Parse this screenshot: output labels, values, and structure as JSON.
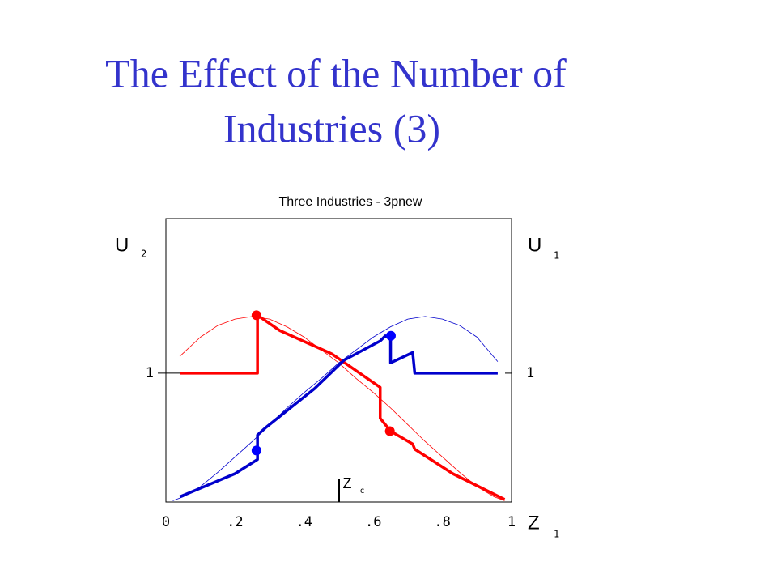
{
  "chart_data": {
    "type": "line",
    "title_lines": [
      "The Effect of the Number of",
      "Industries (3)"
    ],
    "subtitle": "Three  Industries  -  3pnew",
    "y_label_left": {
      "text": "U",
      "sub": "2"
    },
    "y_label_right": {
      "text": "U",
      "sub": "1"
    },
    "x_label": {
      "text": "Z",
      "sub": "1"
    },
    "zc_label": {
      "text": "Z",
      "sub": "c"
    },
    "zc": 0.5,
    "xlim": [
      0,
      1
    ],
    "ylim": [
      0,
      2.2
    ],
    "xticks": [
      0,
      {
        "value": 0.2,
        "label": ".2"
      },
      {
        "value": 0.4,
        "label": ".4"
      },
      {
        "value": 0.6,
        "label": ".6"
      },
      {
        "value": 0.8,
        "label": ".8"
      },
      1
    ],
    "yticks": [
      1
    ],
    "series": [
      {
        "color": "#ff0000",
        "line_width": 0.8,
        "x": [
          0.04,
          0.1,
          0.15,
          0.2,
          0.25,
          0.3,
          0.35,
          0.4,
          0.45,
          0.5,
          0.55,
          0.6,
          0.65,
          0.7,
          0.75,
          0.8,
          0.85,
          0.9,
          0.95,
          0.98
        ],
        "values": [
          1.13,
          1.28,
          1.37,
          1.42,
          1.44,
          1.42,
          1.36,
          1.28,
          1.18,
          1.08,
          0.96,
          0.85,
          0.73,
          0.6,
          0.47,
          0.35,
          0.23,
          0.12,
          0.04,
          0.01
        ]
      },
      {
        "color": "#0000cc",
        "line_width": 0.8,
        "x": [
          0.02,
          0.05,
          0.1,
          0.15,
          0.2,
          0.25,
          0.3,
          0.35,
          0.4,
          0.45,
          0.5,
          0.55,
          0.6,
          0.65,
          0.7,
          0.75,
          0.8,
          0.85,
          0.9,
          0.96
        ],
        "values": [
          0.01,
          0.04,
          0.12,
          0.23,
          0.35,
          0.47,
          0.6,
          0.73,
          0.85,
          0.96,
          1.08,
          1.18,
          1.28,
          1.36,
          1.42,
          1.44,
          1.42,
          1.37,
          1.28,
          1.09
        ]
      },
      {
        "color": "#ff0000",
        "line_width": 3.5,
        "x": [
          0.04,
          0.265,
          0.265,
          0.33,
          0.48,
          0.62,
          0.62,
          0.65,
          0.714,
          0.72,
          0.83,
          0.98
        ],
        "values": [
          1.0,
          1.0,
          1.45,
          1.33,
          1.15,
          0.89,
          0.65,
          0.55,
          0.45,
          0.41,
          0.22,
          0.02
        ]
      },
      {
        "color": "#0000cc",
        "line_width": 3.5,
        "x": [
          0.04,
          0.2,
          0.265,
          0.265,
          0.29,
          0.43,
          0.515,
          0.62,
          0.635,
          0.65,
          0.65,
          0.714,
          0.72,
          0.96
        ],
        "values": [
          0.04,
          0.22,
          0.33,
          0.52,
          0.58,
          0.88,
          1.1,
          1.25,
          1.29,
          1.27,
          1.08,
          1.16,
          1.0,
          1.0
        ]
      }
    ],
    "points": [
      {
        "color": "#ff0000",
        "x": [
          0.262,
          0.648
        ],
        "values": [
          1.45,
          0.55
        ]
      },
      {
        "color": "#0000ff",
        "x": [
          0.262,
          0.651
        ],
        "values": [
          0.4,
          1.29
        ]
      }
    ]
  }
}
